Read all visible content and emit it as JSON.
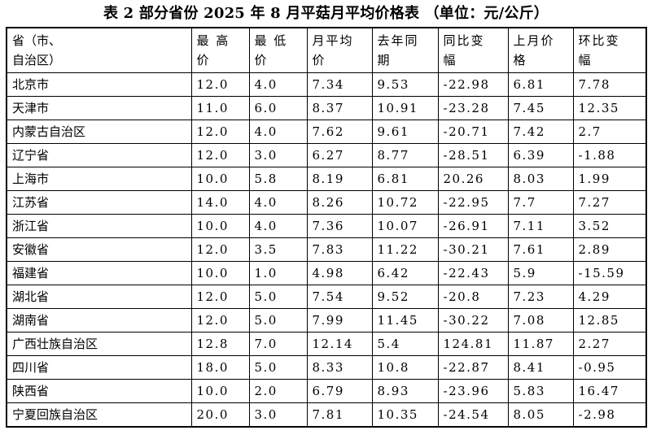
{
  "title": "表 2 部分省份 2025 年 8 月平菇月平均价格表 （单位：元/公斤）",
  "columns": [
    {
      "line1": "省（市、自治区）",
      "line2": ""
    },
    {
      "line1": "最 高",
      "line2": "价"
    },
    {
      "line1": "最 低",
      "line2": "价"
    },
    {
      "line1": "月平均",
      "line2": "价"
    },
    {
      "line1": "去年同",
      "line2": "期"
    },
    {
      "line1": "同比变",
      "line2": "幅"
    },
    {
      "line1": "上月价",
      "line2": "格"
    },
    {
      "line1": "环比变",
      "line2": "幅"
    }
  ],
  "rows": [
    [
      "北京市",
      "12.0",
      "4.0",
      "7.34",
      "9.53",
      "-22.98",
      "6.81",
      "7.78"
    ],
    [
      "天津市",
      "11.0",
      "6.0",
      "8.37",
      "10.91",
      "-23.28",
      "7.45",
      "12.35"
    ],
    [
      "内蒙古自治区",
      "12.0",
      "4.0",
      "7.62",
      "9.61",
      "-20.71",
      "7.42",
      "2.7"
    ],
    [
      "辽宁省",
      "12.0",
      "3.0",
      "6.27",
      "8.77",
      "-28.51",
      "6.39",
      "-1.88"
    ],
    [
      "上海市",
      "10.0",
      "5.8",
      "8.19",
      "6.81",
      "20.26",
      "8.03",
      "1.99"
    ],
    [
      "江苏省",
      "14.0",
      "4.0",
      "8.26",
      "10.72",
      "-22.95",
      "7.7",
      "7.27"
    ],
    [
      "浙江省",
      "10.0",
      "4.0",
      "7.36",
      "10.07",
      "-26.91",
      "7.11",
      "3.52"
    ],
    [
      "安徽省",
      "12.0",
      "3.5",
      "7.83",
      "11.22",
      "-30.21",
      "7.61",
      "2.89"
    ],
    [
      "福建省",
      "10.0",
      "1.0",
      "4.98",
      "6.42",
      "-22.43",
      "5.9",
      "-15.59"
    ],
    [
      "湖北省",
      "12.0",
      "5.0",
      "7.54",
      "9.52",
      "-20.8",
      "7.23",
      "4.29"
    ],
    [
      "湖南省",
      "12.0",
      "5.0",
      "7.99",
      "11.45",
      "-30.22",
      "7.08",
      "12.85"
    ],
    [
      "广西壮族自治区",
      "12.8",
      "7.0",
      "12.14",
      "5.4",
      "124.81",
      "11.87",
      "2.27"
    ],
    [
      "四川省",
      "18.0",
      "5.0",
      "8.33",
      "10.8",
      "-22.87",
      "8.41",
      "-0.95"
    ],
    [
      "陕西省",
      "10.0",
      "2.0",
      "6.79",
      "8.93",
      "-23.96",
      "5.83",
      "16.47"
    ],
    [
      "宁夏回族自治区",
      "20.0",
      "3.0",
      "7.81",
      "10.35",
      "-24.54",
      "8.05",
      "-2.98"
    ]
  ]
}
